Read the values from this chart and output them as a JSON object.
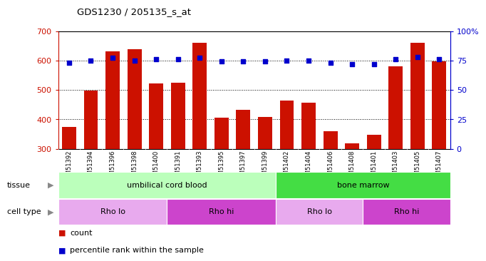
{
  "title": "GDS1230 / 205135_s_at",
  "samples": [
    "GSM51392",
    "GSM51394",
    "GSM51396",
    "GSM51398",
    "GSM51400",
    "GSM51391",
    "GSM51393",
    "GSM51395",
    "GSM51397",
    "GSM51399",
    "GSM51402",
    "GSM51404",
    "GSM51406",
    "GSM51408",
    "GSM51401",
    "GSM51403",
    "GSM51405",
    "GSM51407"
  ],
  "counts": [
    375,
    497,
    632,
    637,
    523,
    525,
    660,
    405,
    432,
    409,
    463,
    457,
    360,
    318,
    347,
    580,
    660,
    597
  ],
  "percentiles": [
    73,
    75,
    77,
    75,
    76,
    76,
    77,
    74,
    74,
    74,
    75,
    75,
    73,
    72,
    72,
    76,
    78,
    76
  ],
  "ymin": 300,
  "ymax": 700,
  "pct_min": 0,
  "pct_max": 100,
  "yticks": [
    300,
    400,
    500,
    600,
    700
  ],
  "pct_ticks": [
    0,
    25,
    50,
    75,
    100
  ],
  "grid_lines": [
    400,
    500,
    600
  ],
  "bar_color": "#cc1100",
  "dot_color": "#0000cc",
  "tissue_groups": [
    {
      "label": "umbilical cord blood",
      "start": 0,
      "end": 10,
      "color": "#bbffbb"
    },
    {
      "label": "bone marrow",
      "start": 10,
      "end": 18,
      "color": "#44dd44"
    }
  ],
  "cell_type_groups": [
    {
      "label": "Rho lo",
      "start": 0,
      "end": 5,
      "color": "#e8aaee"
    },
    {
      "label": "Rho hi",
      "start": 5,
      "end": 10,
      "color": "#cc44cc"
    },
    {
      "label": "Rho lo",
      "start": 10,
      "end": 14,
      "color": "#e8aaee"
    },
    {
      "label": "Rho hi",
      "start": 14,
      "end": 18,
      "color": "#cc44cc"
    }
  ],
  "tissue_row_label": "tissue",
  "cell_type_row_label": "cell type",
  "legend_count_label": "count",
  "legend_pct_label": "percentile rank within the sample",
  "bg_color": "#cccccc",
  "arrow_color": "#888888"
}
